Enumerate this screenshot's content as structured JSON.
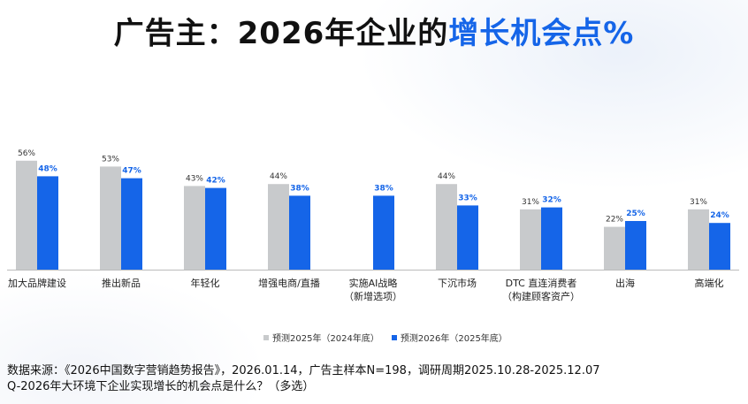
{
  "title": {
    "main": "广告主：2026年企业的",
    "accent": "增长机会点%"
  },
  "colors": {
    "series_2025": "#c8cacc",
    "series_2026": "#1565e8",
    "label_2025": "#333333",
    "label_2026": "#1565e8",
    "axis": "#bbbbbb"
  },
  "chart_data": {
    "type": "bar",
    "categories": [
      [
        "加大品牌建设"
      ],
      [
        "推出新品"
      ],
      [
        "年轻化"
      ],
      [
        "增强电商/直播"
      ],
      [
        "实施AI战略",
        "（新增选项）"
      ],
      [
        "下沉市场"
      ],
      [
        "DTC 直连消费者",
        "（构建顾客资产）"
      ],
      [
        "出海"
      ],
      [
        "高端化"
      ]
    ],
    "series": [
      {
        "name": "预测2025年（2024年底）",
        "values": [
          56,
          53,
          43,
          44,
          null,
          44,
          31,
          22,
          31
        ],
        "labels": [
          "56%",
          "53%",
          "43%",
          "44%",
          "",
          "44%",
          "31%",
          "22%",
          "31%"
        ]
      },
      {
        "name": "预测2026年（2025年底）",
        "values": [
          48,
          47,
          42,
          38,
          38,
          33,
          32,
          25,
          24
        ],
        "labels": [
          "48%",
          "47%",
          "42%",
          "38%",
          "38%",
          "33%",
          "32%",
          "25%",
          "24%"
        ]
      }
    ],
    "ylim": [
      0,
      100
    ],
    "grid": false,
    "legend_position": "bottom"
  },
  "source": {
    "line1": "数据来源：《2026中国数字营销趋势报告》，2026.01.14，广告主样本N=198，调研周期2025.10.28-2025.12.07",
    "line2": "Q-2026年大环境下企业实现增长的机会点是什么？（多选）"
  }
}
